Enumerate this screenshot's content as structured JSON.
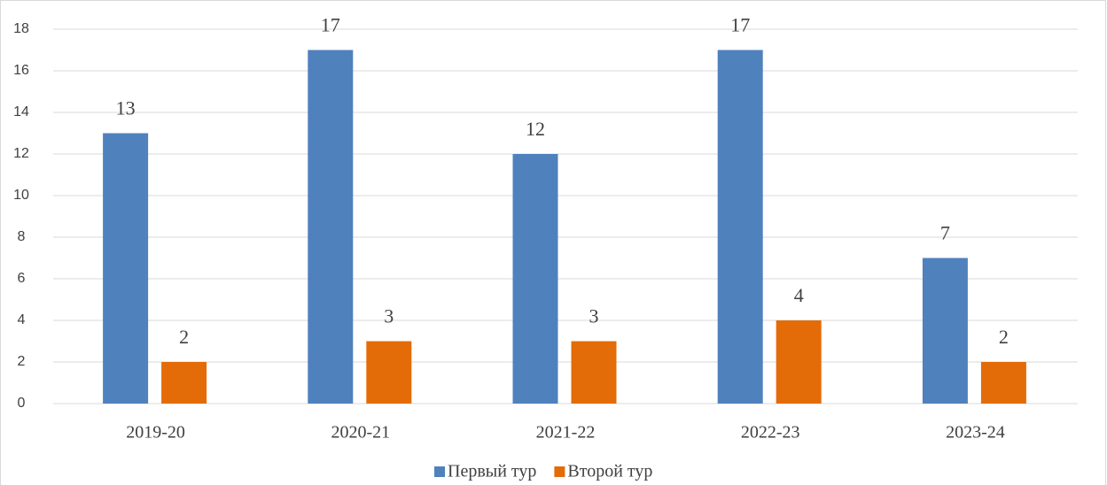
{
  "chart_data": {
    "type": "bar",
    "categories": [
      "2019-20",
      "2020-21",
      "2021-22",
      "2022-23",
      "2023-24"
    ],
    "series": [
      {
        "name": "Первый тур",
        "color": "#4f81bd",
        "values": [
          13,
          17,
          12,
          17,
          7
        ]
      },
      {
        "name": "Второй тур",
        "color": "#e36c09",
        "values": [
          2,
          3,
          3,
          4,
          2
        ]
      }
    ],
    "ylim": [
      0,
      18
    ],
    "yticks": [
      0,
      2,
      4,
      6,
      8,
      10,
      12,
      14,
      16,
      18
    ],
    "grid": true,
    "legend": "bottom",
    "data_labels": true
  }
}
